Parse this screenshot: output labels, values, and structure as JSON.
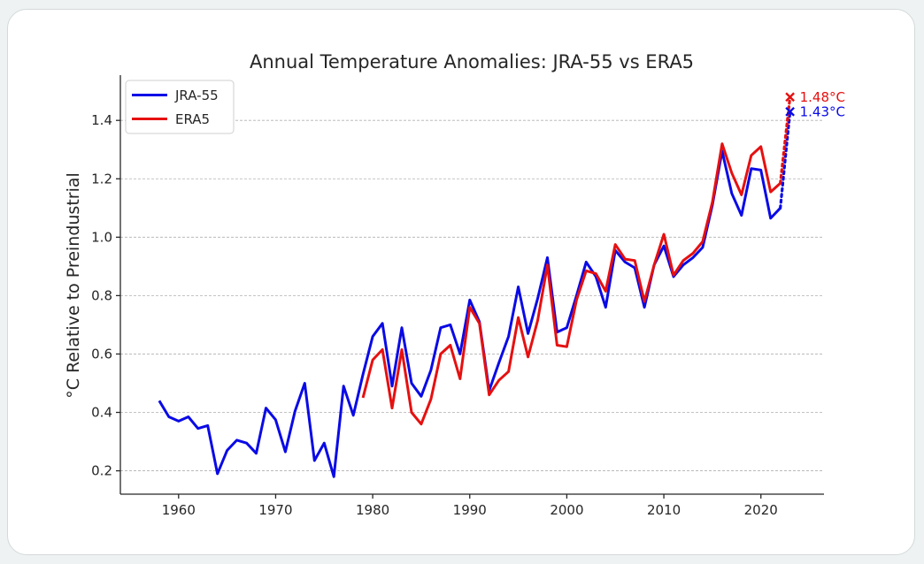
{
  "chart_data": {
    "type": "line",
    "title": "Annual Temperature Anomalies: JRA-55 vs ERA5",
    "xlabel": "",
    "ylabel": "°C Relative to Preindustrial",
    "xlim": [
      1954,
      2026.5
    ],
    "ylim": [
      0.12,
      1.555
    ],
    "x_ticks": [
      1960,
      1970,
      1980,
      1990,
      2000,
      2010,
      2020
    ],
    "y_ticks": [
      0.2,
      0.4,
      0.6,
      0.8,
      1.0,
      1.2,
      1.4
    ],
    "y_tick_labels": [
      "0.2",
      "0.4",
      "0.6",
      "0.8",
      "1.0",
      "1.2",
      "1.4"
    ],
    "grid": "horizontal dashed",
    "legend_position": "top-left",
    "series": [
      {
        "name": "JRA-55",
        "color": "#0a0ae6",
        "x": [
          1958,
          1959,
          1960,
          1961,
          1962,
          1963,
          1964,
          1965,
          1966,
          1967,
          1968,
          1969,
          1970,
          1971,
          1972,
          1973,
          1974,
          1975,
          1976,
          1977,
          1978,
          1979,
          1980,
          1981,
          1982,
          1983,
          1984,
          1985,
          1986,
          1987,
          1988,
          1989,
          1990,
          1991,
          1992,
          1993,
          1994,
          1995,
          1996,
          1997,
          1998,
          1999,
          2000,
          2001,
          2002,
          2003,
          2004,
          2005,
          2006,
          2007,
          2008,
          2009,
          2010,
          2011,
          2012,
          2013,
          2014,
          2015,
          2016,
          2017,
          2018,
          2019,
          2020,
          2021,
          2022
        ],
        "values": [
          0.44,
          0.385,
          0.37,
          0.385,
          0.345,
          0.355,
          0.19,
          0.27,
          0.305,
          0.295,
          0.26,
          0.415,
          0.375,
          0.265,
          0.405,
          0.5,
          0.235,
          0.295,
          0.18,
          0.49,
          0.39,
          0.53,
          0.66,
          0.705,
          0.49,
          0.69,
          0.5,
          0.455,
          0.545,
          0.69,
          0.7,
          0.6,
          0.785,
          0.71,
          0.475,
          0.57,
          0.66,
          0.83,
          0.67,
          0.79,
          0.93,
          0.675,
          0.69,
          0.8,
          0.915,
          0.865,
          0.76,
          0.955,
          0.915,
          0.895,
          0.76,
          0.905,
          0.97,
          0.865,
          0.905,
          0.93,
          0.965,
          1.11,
          1.295,
          1.15,
          1.075,
          1.235,
          1.23,
          1.065,
          1.1
        ],
        "projection": {
          "x": [
            2022,
            2023
          ],
          "values": [
            1.1,
            1.43
          ]
        },
        "annotation": {
          "x": 2023,
          "value": 1.43,
          "label": "1.43°C"
        }
      },
      {
        "name": "ERA5",
        "color": "#e61010",
        "x": [
          1979,
          1980,
          1981,
          1982,
          1983,
          1984,
          1985,
          1986,
          1987,
          1988,
          1989,
          1990,
          1991,
          1992,
          1993,
          1994,
          1995,
          1996,
          1997,
          1998,
          1999,
          2000,
          2001,
          2002,
          2003,
          2004,
          2005,
          2006,
          2007,
          2008,
          2009,
          2010,
          2011,
          2012,
          2013,
          2014,
          2015,
          2016,
          2017,
          2018,
          2019,
          2020,
          2021,
          2022
        ],
        "values": [
          0.45,
          0.58,
          0.615,
          0.415,
          0.615,
          0.4,
          0.36,
          0.445,
          0.6,
          0.63,
          0.515,
          0.76,
          0.705,
          0.46,
          0.51,
          0.54,
          0.725,
          0.59,
          0.715,
          0.905,
          0.63,
          0.625,
          0.785,
          0.885,
          0.875,
          0.815,
          0.975,
          0.925,
          0.92,
          0.78,
          0.905,
          1.01,
          0.87,
          0.92,
          0.945,
          0.985,
          1.12,
          1.32,
          1.22,
          1.145,
          1.28,
          1.31,
          1.155,
          1.185
        ],
        "projection": {
          "x": [
            2022,
            2023
          ],
          "values": [
            1.185,
            1.48
          ]
        },
        "annotation": {
          "x": 2023,
          "value": 1.48,
          "label": "1.48°C"
        }
      }
    ]
  }
}
